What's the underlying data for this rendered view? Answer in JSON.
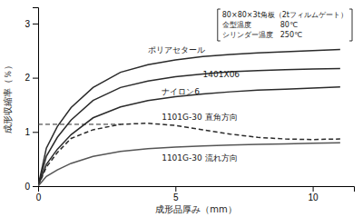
{
  "chart_data": {
    "type": "line",
    "xlabel": "成形品厚み（mm）",
    "ylabel": "成形収縮率（％）",
    "x": [
      0,
      0.3,
      0.7,
      1.2,
      2,
      3,
      4,
      5,
      6,
      7,
      8,
      9,
      10,
      11
    ],
    "series": [
      {
        "color": "#2a2a2a",
        "line_style": "solid",
        "values": [
          0,
          0.7,
          1.1,
          1.45,
          1.82,
          2.1,
          2.24,
          2.33,
          2.39,
          2.43,
          2.46,
          2.48,
          2.5,
          2.52
        ]
      },
      {
        "color": "#2a2a2a",
        "line_style": "solid",
        "values": [
          0,
          0.55,
          0.9,
          1.22,
          1.58,
          1.82,
          1.94,
          2.02,
          2.07,
          2.11,
          2.13,
          2.15,
          2.16,
          2.17
        ]
      },
      {
        "color": "#2a2a2a",
        "line_style": "solid",
        "values": [
          0,
          0.4,
          0.68,
          0.95,
          1.26,
          1.46,
          1.58,
          1.65,
          1.7,
          1.74,
          1.77,
          1.79,
          1.81,
          1.83
        ]
      },
      {
        "color": "#2a2a2a",
        "line_style": "dashed",
        "values": [
          0,
          0.35,
          0.62,
          0.88,
          1.04,
          1.14,
          1.16,
          1.12,
          1.04,
          0.96,
          0.9,
          0.87,
          0.86,
          0.87
        ]
      },
      {
        "color": "#555555",
        "line_style": "solid",
        "values": [
          0,
          0.18,
          0.3,
          0.42,
          0.55,
          0.64,
          0.69,
          0.72,
          0.74,
          0.76,
          0.77,
          0.78,
          0.79,
          0.8
        ]
      }
    ],
    "annotations": [
      {
        "text": "ポリアセタール",
        "x": 4.0,
        "y": 2.52
      },
      {
        "text": "1401X06",
        "x": 6.0,
        "y": 2.07
      },
      {
        "text": "ナイロン6",
        "x": 4.5,
        "y": 1.75
      },
      {
        "text": "1101G-30 直角方向",
        "x": 4.5,
        "y": 1.28
      },
      {
        "text": "1101G-30 流れ方向",
        "x": 4.5,
        "y": 0.52
      }
    ],
    "reference_line": {
      "x": [
        0,
        3.0
      ],
      "y": 1.14
    },
    "info_lines": [
      "80×80×3t角板（2tフィルムゲート）",
      "金型温度　　　　80℃",
      "シリンダー温度　250℃"
    ],
    "xlim": [
      0,
      11.5
    ],
    "ylim": [
      0,
      3.3
    ],
    "xticks": [
      0,
      5,
      10
    ],
    "yticks": [
      0,
      1,
      2,
      3
    ]
  }
}
